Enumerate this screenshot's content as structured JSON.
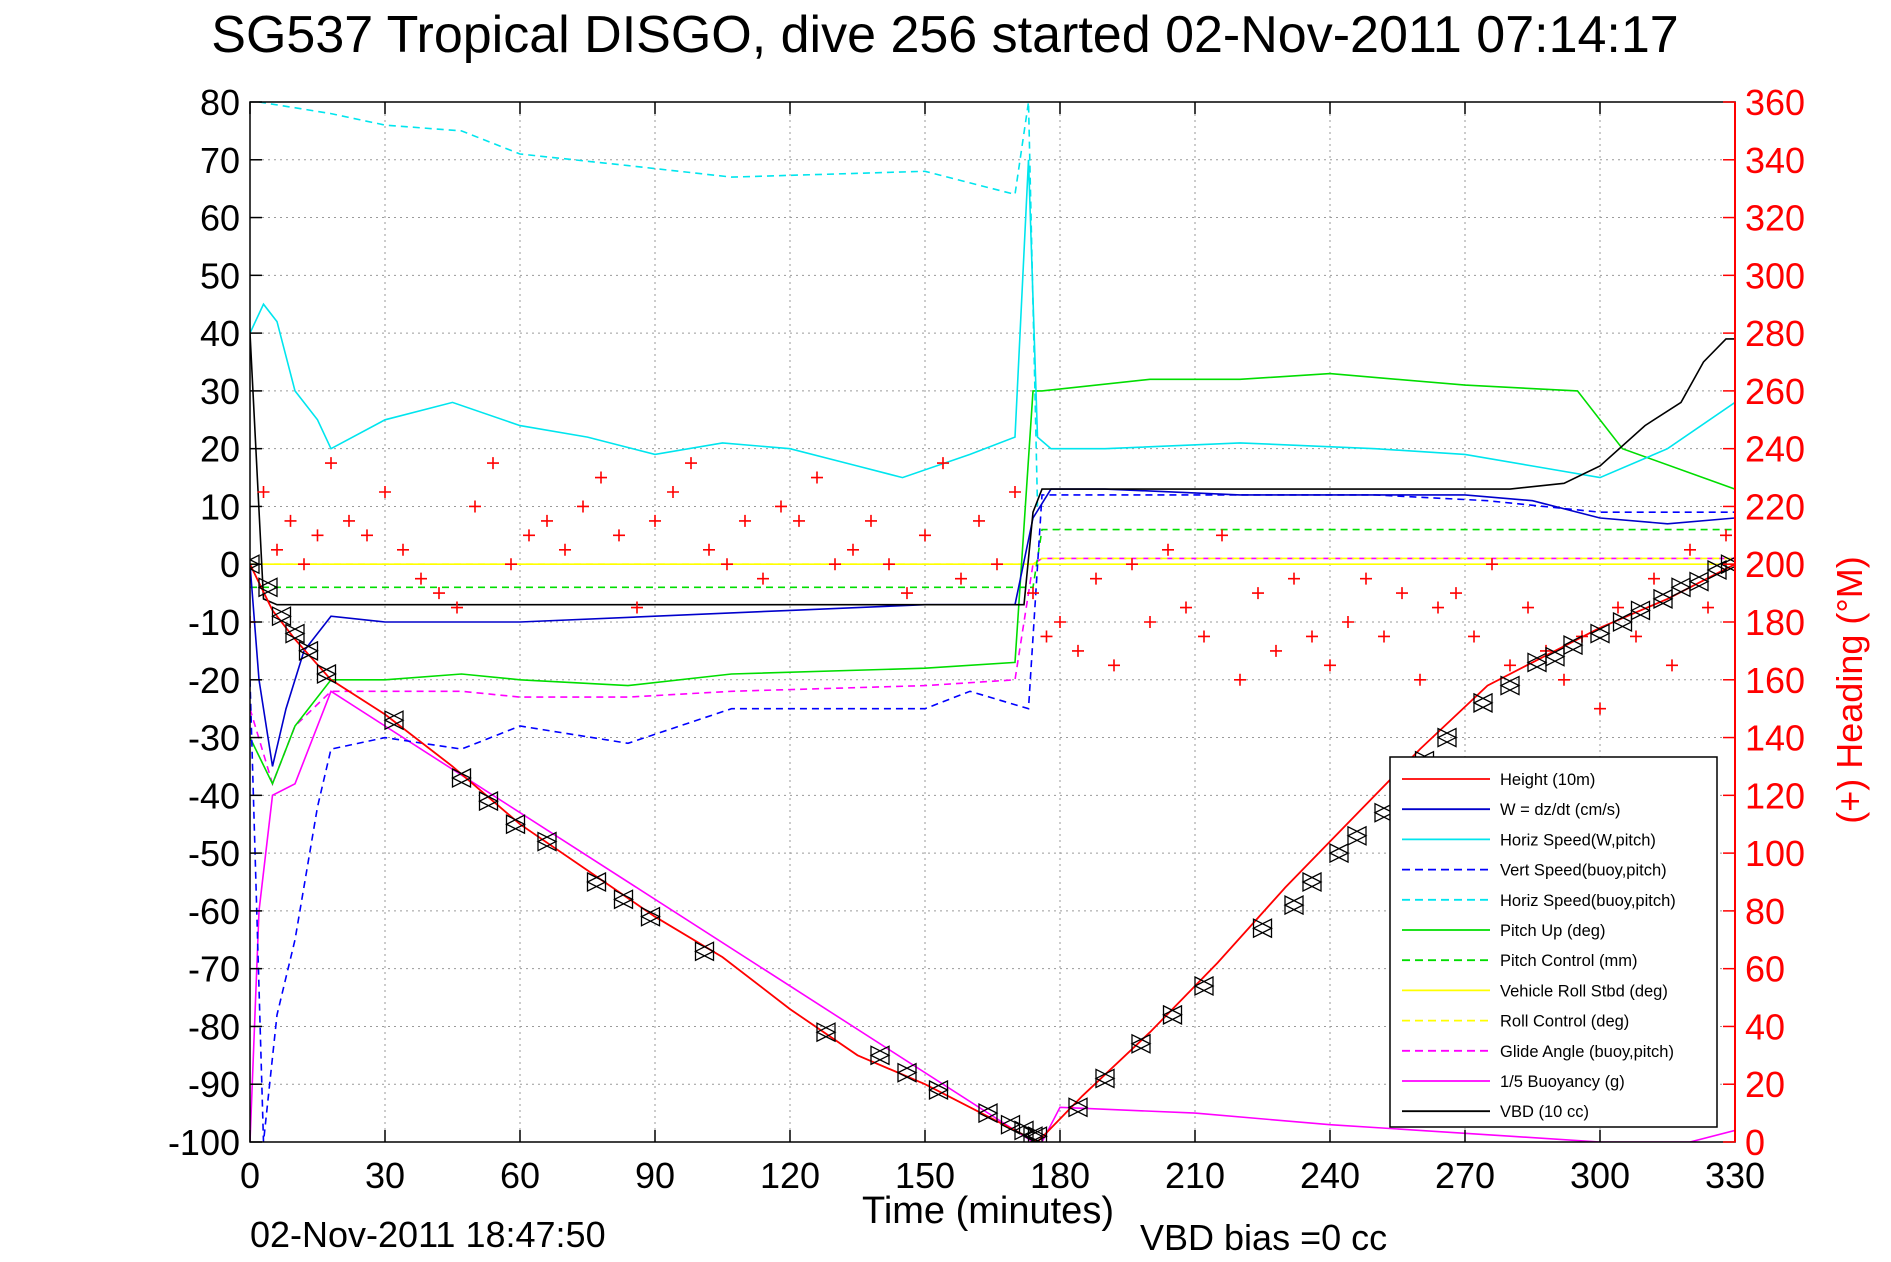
{
  "chart_data": {
    "type": "line",
    "title": "SG537 Tropical DISGO, dive 256 started 02-Nov-2011 07:14:17",
    "xlabel": "Time (minutes)",
    "ylabel_right": "(+) Heading (°M)",
    "footer_left": "02-Nov-2011 18:47:50",
    "footer_right": "VBD bias =0 cc",
    "xlim": [
      0,
      330
    ],
    "ylim_left": [
      -100,
      80
    ],
    "ylim_right": [
      0,
      360
    ],
    "xticks": [
      0,
      30,
      60,
      90,
      120,
      150,
      180,
      210,
      240,
      270,
      300,
      330
    ],
    "yticks_left": [
      80,
      70,
      60,
      50,
      40,
      30,
      20,
      10,
      0,
      -10,
      -20,
      -30,
      -40,
      -50,
      -60,
      -70,
      -80,
      -90,
      -100
    ],
    "yticks_right": [
      360,
      340,
      320,
      300,
      280,
      260,
      240,
      220,
      200,
      180,
      160,
      140,
      120,
      100,
      80,
      60,
      40,
      20,
      0
    ],
    "grid": true,
    "legend_position": "bottom-right",
    "colors": {
      "height": "#ff0000",
      "w": "#0000cc",
      "horiz_speed": "#00e5ee",
      "vert_speed_buoy": "#0000ff",
      "horiz_speed_buoy": "#00e5ee",
      "pitch": "#00dd00",
      "pitch_control": "#00dd00",
      "roll": "#ffff00",
      "roll_control": "#ffff00",
      "glide_angle": "#ff00ff",
      "buoyancy": "#ff00ff",
      "vbd": "#000000",
      "heading": "#ff0000",
      "right_axis": "#ff0000"
    },
    "series": [
      {
        "key": "height",
        "name": "Height (10m)",
        "style": "solid",
        "x": [
          0,
          5,
          10,
          18,
          30,
          45,
          60,
          75,
          90,
          105,
          120,
          135,
          150,
          160,
          170,
          175,
          185,
          200,
          215,
          230,
          245,
          260,
          275,
          285,
          300,
          315,
          330
        ],
        "y": [
          0,
          -8,
          -13,
          -20,
          -26,
          -35,
          -45,
          -53,
          -61,
          -68,
          -77,
          -85,
          -90,
          -94,
          -98,
          -100,
          -92,
          -81,
          -69,
          -56,
          -44,
          -32,
          -21,
          -17,
          -11,
          -6,
          0
        ]
      },
      {
        "key": "w",
        "name": "W = dz/dt (cm/s)",
        "style": "solid",
        "x": [
          0,
          2,
          5,
          8,
          12,
          18,
          30,
          60,
          90,
          120,
          150,
          170,
          174,
          178,
          190,
          220,
          250,
          270,
          285,
          300,
          315,
          330
        ],
        "y": [
          0,
          -20,
          -35,
          -25,
          -15,
          -9,
          -10,
          -10,
          -9,
          -8,
          -7,
          -7,
          8,
          13,
          13,
          12,
          12,
          12,
          11,
          8,
          7,
          8
        ]
      },
      {
        "key": "horiz_speed",
        "name": "Horiz Speed(W,pitch)",
        "style": "solid",
        "x": [
          0,
          3,
          6,
          10,
          15,
          18,
          30,
          45,
          60,
          75,
          90,
          105,
          120,
          135,
          145,
          160,
          170,
          173,
          175,
          178,
          190,
          220,
          250,
          270,
          285,
          300,
          315,
          330
        ],
        "y": [
          40,
          45,
          42,
          30,
          25,
          20,
          25,
          28,
          24,
          22,
          19,
          21,
          20,
          17,
          15,
          19,
          22,
          70,
          22,
          20,
          20,
          21,
          20,
          19,
          17,
          15,
          20,
          28
        ]
      },
      {
        "key": "vert_speed_buoy",
        "name": "Vert Speed(buoy,pitch)",
        "style": "dashed",
        "x": [
          0,
          3,
          6,
          10,
          15,
          18,
          30,
          47,
          60,
          84,
          107,
          150,
          160,
          173,
          176,
          190,
          250,
          275,
          300,
          330
        ],
        "y": [
          -20,
          -100,
          -78,
          -65,
          -42,
          -32,
          -30,
          -32,
          -28,
          -31,
          -25,
          -25,
          -22,
          -25,
          12,
          12,
          12,
          11,
          9,
          9
        ]
      },
      {
        "key": "horiz_speed_buoy",
        "name": "Horiz Speed(buoy,pitch)",
        "style": "dashed",
        "x": [
          2,
          18,
          30,
          47,
          60,
          84,
          107,
          150,
          160,
          170,
          173,
          175
        ],
        "y": [
          80,
          78,
          76,
          75,
          71,
          69,
          67,
          68,
          66,
          64,
          80,
          10
        ]
      },
      {
        "key": "pitch",
        "name": "Pitch Up (deg)",
        "style": "solid",
        "x": [
          0,
          5,
          10,
          18,
          30,
          47,
          60,
          84,
          107,
          150,
          170,
          174,
          176,
          200,
          220,
          240,
          270,
          295,
          305,
          330
        ],
        "y": [
          -30,
          -38,
          -28,
          -20,
          -20,
          -19,
          -20,
          -21,
          -19,
          -18,
          -17,
          30,
          30,
          32,
          32,
          33,
          31,
          30,
          20,
          13
        ]
      },
      {
        "key": "pitch_control",
        "name": "Pitch Control (mm)",
        "style": "dashed",
        "x": [
          0,
          30,
          60,
          90,
          120,
          150,
          174,
          176,
          210,
          240,
          270,
          300,
          330
        ],
        "y": [
          -4,
          -4,
          -4,
          -4,
          -4,
          -4,
          -4,
          6,
          6,
          6,
          6,
          6,
          6
        ]
      },
      {
        "key": "roll",
        "name": "Vehicle Roll Stbd (deg)",
        "style": "solid",
        "x": [
          0,
          30,
          60,
          90,
          120,
          150,
          174,
          176,
          210,
          240,
          270,
          300,
          330
        ],
        "y": [
          0,
          0,
          0,
          0,
          0,
          0,
          0,
          0,
          0,
          0,
          0,
          0,
          0
        ]
      },
      {
        "key": "roll_control",
        "name": "Roll Control (deg)",
        "style": "dashed",
        "x": [
          0,
          30,
          60,
          90,
          120,
          150,
          174,
          176,
          210,
          240,
          270,
          300,
          330
        ],
        "y": [
          0,
          0,
          0,
          0,
          0,
          0,
          0,
          1,
          1,
          1,
          1,
          1,
          1
        ]
      },
      {
        "key": "glide_angle",
        "name": "Glide Angle (buoy,pitch)",
        "style": "dashed",
        "x": [
          0,
          5,
          10,
          18,
          30,
          47,
          60,
          84,
          107,
          150,
          170,
          174,
          176,
          330
        ],
        "y": [
          -25,
          -38,
          -28,
          -22,
          -22,
          -22,
          -23,
          -23,
          -22,
          -21,
          -20,
          0,
          1,
          1
        ]
      },
      {
        "key": "buoyancy",
        "name": "1/5 Buoyancy (g)",
        "style": "solid",
        "x": [
          0,
          2,
          5,
          10,
          18,
          174,
          176,
          180,
          210,
          240,
          260,
          280,
          300,
          320,
          330
        ],
        "y": [
          -100,
          -60,
          -40,
          -38,
          -22,
          -100,
          -100,
          -94,
          -95,
          -97,
          -98,
          -99,
          -100,
          -100,
          -98
        ]
      },
      {
        "key": "vbd",
        "name": "VBD (10 cc)",
        "style": "solid",
        "x": [
          0,
          3,
          6,
          100,
          172,
          174,
          176,
          200,
          280,
          292,
          300,
          310,
          318,
          323,
          328,
          330
        ],
        "y": [
          40,
          -6,
          -7,
          -7,
          -7,
          9,
          13,
          13,
          13,
          14,
          17,
          24,
          28,
          35,
          39,
          39
        ]
      }
    ],
    "heading": {
      "name": "(+) Heading (°M)",
      "marker": "+",
      "x": [
        0,
        3,
        6,
        9,
        12,
        15,
        18,
        22,
        26,
        30,
        34,
        38,
        42,
        46,
        50,
        54,
        58,
        62,
        66,
        70,
        74,
        78,
        82,
        86,
        90,
        94,
        98,
        102,
        106,
        110,
        114,
        118,
        122,
        126,
        130,
        134,
        138,
        142,
        146,
        150,
        154,
        158,
        162,
        166,
        170,
        174,
        177,
        180,
        184,
        188,
        192,
        196,
        200,
        204,
        208,
        212,
        216,
        220,
        224,
        228,
        232,
        236,
        240,
        244,
        248,
        252,
        256,
        260,
        264,
        268,
        272,
        276,
        280,
        284,
        288,
        292,
        296,
        300,
        304,
        308,
        312,
        316,
        320,
        324,
        328,
        330
      ],
      "y": [
        180,
        225,
        205,
        215,
        200,
        210,
        235,
        215,
        210,
        225,
        205,
        195,
        190,
        185,
        220,
        235,
        200,
        210,
        215,
        205,
        220,
        230,
        210,
        185,
        215,
        225,
        235,
        205,
        200,
        215,
        195,
        220,
        215,
        230,
        200,
        205,
        215,
        200,
        190,
        210,
        235,
        195,
        215,
        200,
        225,
        190,
        175,
        180,
        170,
        195,
        165,
        200,
        180,
        205,
        185,
        175,
        210,
        160,
        190,
        170,
        195,
        175,
        165,
        180,
        195,
        175,
        190,
        160,
        185,
        190,
        175,
        200,
        165,
        185,
        170,
        160,
        175,
        150,
        185,
        175,
        195,
        165,
        205,
        185,
        210,
        200
      ]
    },
    "markers": {
      "name": "triangles",
      "x": [
        0,
        4,
        7,
        10,
        13,
        17,
        32,
        47,
        53,
        59,
        66,
        77,
        83,
        89,
        101,
        128,
        140,
        146,
        153,
        164,
        169,
        172,
        174,
        175,
        184,
        190,
        198,
        205,
        212,
        225,
        232,
        236,
        242,
        246,
        252,
        256,
        261,
        266,
        274,
        280,
        286,
        290,
        294,
        300,
        305,
        309,
        314,
        318,
        322,
        326,
        329
      ],
      "y": [
        0,
        -4,
        -9,
        -12,
        -15,
        -19,
        -27,
        -37,
        -41,
        -45,
        -48,
        -55,
        -58,
        -61,
        -67,
        -81,
        -85,
        -88,
        -91,
        -95,
        -97,
        -98,
        -99,
        -99,
        -94,
        -89,
        -83,
        -78,
        -73,
        -63,
        -59,
        -55,
        -50,
        -47,
        -43,
        -40,
        -34,
        -30,
        -24,
        -21,
        -17,
        -16,
        -14,
        -12,
        -10,
        -8,
        -6,
        -4,
        -3,
        -1,
        0
      ]
    }
  }
}
